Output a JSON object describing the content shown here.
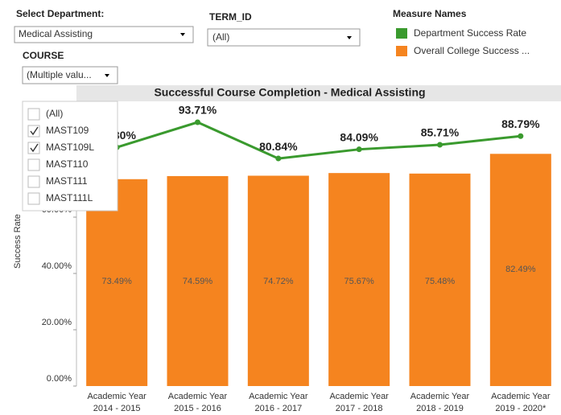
{
  "filters": {
    "department": {
      "label": "Select Department:",
      "value": "Medical Assisting"
    },
    "term": {
      "label": "TERM_ID",
      "value": "(All)"
    },
    "course": {
      "label": "COURSE",
      "value": "(Multiple valu...",
      "options": [
        {
          "label": "(All)",
          "checked": false
        },
        {
          "label": "MAST109",
          "checked": true
        },
        {
          "label": "MAST109L",
          "checked": true
        },
        {
          "label": "MAST110",
          "checked": false
        },
        {
          "label": "MAST111",
          "checked": false
        },
        {
          "label": "MAST111L",
          "checked": false
        }
      ]
    }
  },
  "legend_title": "Measure Names",
  "chart_data": {
    "type": "bar_line",
    "title": "Successful Course Completion - Medical Assisting",
    "ylabel": "Success Rate",
    "categories": [
      [
        "Academic Year",
        "2014 - 2015"
      ],
      [
        "Academic Year",
        "2015 - 2016"
      ],
      [
        "Academic Year",
        "2016 - 2017"
      ],
      [
        "Academic Year",
        "2017 - 2018"
      ],
      [
        "Academic Year",
        "2018 - 2019"
      ],
      [
        "Academic Year",
        "2019 - 2020*"
      ]
    ],
    "series": [
      {
        "name": "Department Success Rate",
        "color": "#3a9a2e",
        "kind": "line",
        "values": [
          84.8,
          93.71,
          80.84,
          84.09,
          85.71,
          88.79
        ],
        "value_labels": [
          "84.80%",
          "93.71%",
          "80.84%",
          "84.09%",
          "85.71%",
          "88.79%"
        ]
      },
      {
        "name": "Overall College Success ...",
        "color": "#f5841f",
        "kind": "bar",
        "values": [
          73.49,
          74.59,
          74.72,
          75.67,
          75.48,
          82.49
        ],
        "value_labels": [
          "73.49%",
          "74.59%",
          "74.72%",
          "75.67%",
          "75.48%",
          "82.49%"
        ]
      }
    ],
    "ylim": [
      0,
      100
    ],
    "yticks": [
      {
        "value": 0,
        "label": "0.00%"
      },
      {
        "value": 20,
        "label": "20.00%"
      },
      {
        "value": 40,
        "label": "40.00%"
      },
      {
        "value": 60,
        "label": "60.00%"
      }
    ]
  }
}
